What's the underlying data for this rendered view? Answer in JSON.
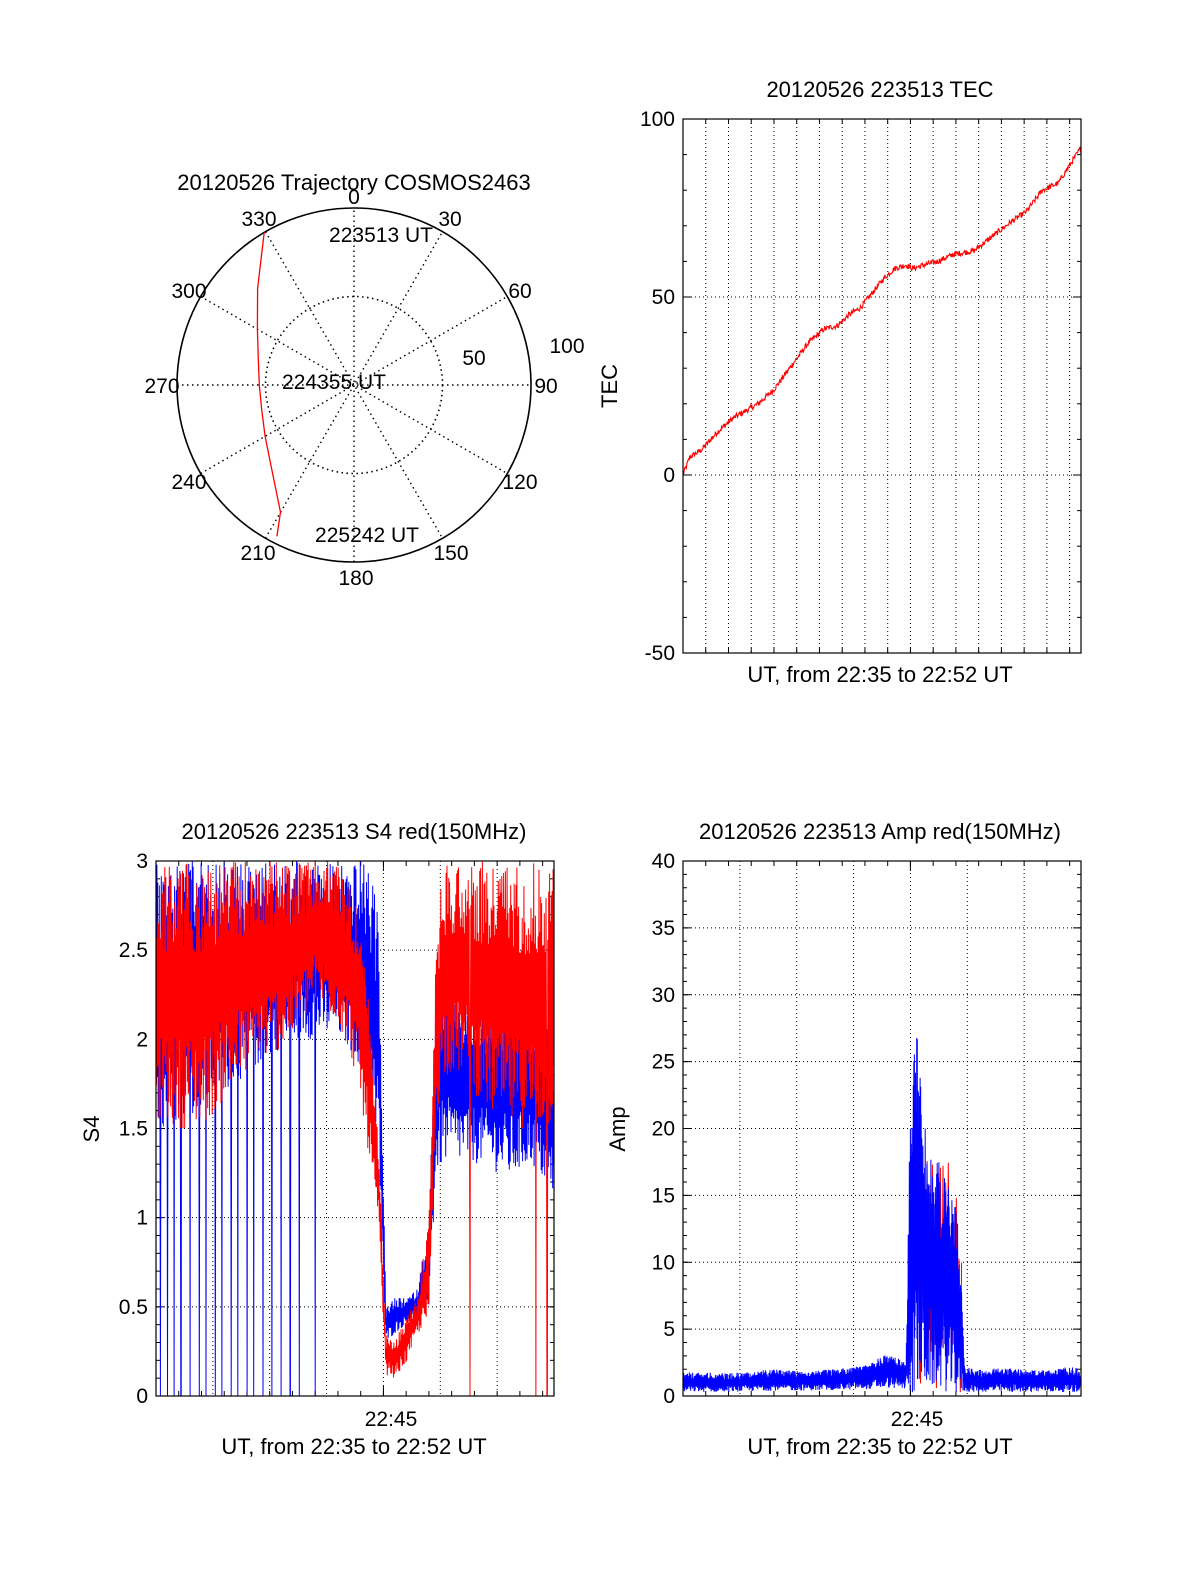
{
  "figure": {
    "palette": {
      "red": "#ff0000",
      "blue": "#0000ff",
      "axis": "#000000"
    }
  },
  "chart_data": [
    {
      "id": "polar",
      "type": "polar-trajectory",
      "title": "20120526 Trajectory COSMOS2463",
      "azimuth_labels": [
        "0",
        "30",
        "60",
        "90",
        "120",
        "150",
        "180",
        "210",
        "240",
        "270",
        "300",
        "330"
      ],
      "radial_labels": [
        "50",
        "100"
      ],
      "rmax": 100,
      "grid": true,
      "series": [
        {
          "color": "#ff0000",
          "points_az_zenith": [
            [
              -30.5,
              100
            ],
            [
              -45,
              77
            ],
            [
              -60,
              63
            ],
            [
              -75,
              56
            ],
            [
              -90,
              53.5
            ],
            [
              -105,
              54
            ],
            [
              -120,
              58
            ],
            [
              -135,
              66
            ],
            [
              -150,
              83
            ],
            [
              -153,
              96
            ]
          ]
        }
      ],
      "annotations": [
        {
          "text": "223513 UT",
          "az": 13,
          "zenith": 95
        },
        {
          "text": "224355 UT",
          "az": -90,
          "zenith": 8
        },
        {
          "text": "225242 UT",
          "az": 172,
          "zenith": 90
        }
      ]
    },
    {
      "id": "tec",
      "type": "line",
      "title": "20120526 223513 TEC",
      "xlabel": "UT, from 22:35 to 22:52 UT",
      "ylabel": "TEC",
      "xlim": [
        0,
        17.5
      ],
      "ylim": [
        -50,
        100
      ],
      "yticks": [
        "-50",
        "0",
        "50",
        "100"
      ],
      "x_minor_grid_step": 1,
      "grid": true,
      "series": [
        {
          "color": "#ff0000",
          "x_minutes": [
            0,
            0.3,
            0.8,
            1.5,
            2.2,
            3.3,
            4.0,
            4.8,
            5.5,
            6.2,
            6.8,
            7.3,
            7.8,
            8.3,
            8.8,
            9.3,
            9.8,
            10.1,
            10.6,
            11.2,
            11.9,
            12.8,
            13.6,
            14.4,
            15.1,
            15.8,
            16.5,
            17.0,
            17.5
          ],
          "values": [
            0,
            5,
            7,
            12,
            16,
            20,
            24,
            31,
            37,
            41,
            42,
            45,
            47,
            51,
            55,
            58,
            59,
            58,
            59,
            60,
            62,
            63,
            67,
            71,
            74,
            80,
            82,
            87,
            92
          ]
        }
      ]
    },
    {
      "id": "s4",
      "type": "line",
      "title": "20120526 223513 S4 red(150MHz)",
      "xlabel": "UT, from 22:35 to 22:52 UT",
      "ylabel": "S4",
      "xlim": [
        0,
        17.5
      ],
      "ylim": [
        0,
        3
      ],
      "yticks": [
        "0",
        "0.5",
        "1",
        "1.5",
        "2",
        "2.5",
        "3"
      ],
      "xtick": {
        "at_minutes": 10,
        "label": "22:45"
      },
      "grid": true,
      "series": [
        {
          "color": "#ff0000",
          "note": "red channel; envelope of scintillation trace",
          "x_minutes": [
            0,
            2,
            4,
            6,
            7,
            8,
            8.8,
            9.3,
            9.8,
            10.1,
            10.5,
            11.0,
            11.5,
            12.0,
            12.3,
            12.6,
            13.5,
            14.5,
            15.5,
            16.5,
            17.5
          ],
          "upper": [
            3,
            3,
            3,
            3,
            3,
            3,
            2.8,
            2.3,
            1.4,
            0.35,
            0.3,
            0.45,
            0.55,
            1.0,
            2.5,
            3,
            3,
            3,
            3,
            3,
            3
          ],
          "lower": [
            1.5,
            1.5,
            1.8,
            2.0,
            2.2,
            2.1,
            1.8,
            1.4,
            0.9,
            0.12,
            0.1,
            0.18,
            0.35,
            0.4,
            1.5,
            1.8,
            1.8,
            1.6,
            1.5,
            1.5,
            1.5
          ],
          "dropouts_minutes": [
            13.8,
            16.7,
            17.2
          ]
        },
        {
          "color": "#0000ff",
          "note": "blue channel; envelope of scintillation trace",
          "x_minutes": [
            0,
            2,
            4,
            6,
            7,
            8,
            8.8,
            9.3,
            9.8,
            10.1,
            10.5,
            11.0,
            11.5,
            12.0,
            12.3,
            12.6,
            13.5,
            14.5,
            15.5,
            16.5,
            17.5
          ],
          "upper": [
            3,
            3,
            3,
            3,
            3,
            3,
            3,
            3,
            2.7,
            0.5,
            0.55,
            0.55,
            0.6,
            1.0,
            2.2,
            2.4,
            2.3,
            2.2,
            2.3,
            2.2,
            2.0
          ],
          "lower": [
            1.5,
            1.6,
            1.8,
            2.0,
            2.0,
            2.0,
            1.9,
            1.7,
            1.3,
            0.3,
            0.35,
            0.4,
            0.45,
            0.5,
            1.2,
            1.3,
            1.3,
            1.3,
            1.2,
            1.3,
            1.1
          ],
          "dropouts_minutes": [
            0.2,
            0.5,
            0.8,
            1.1,
            1.5,
            1.9,
            2.2,
            2.6,
            2.9,
            3.3,
            3.6,
            4.0,
            4.3,
            4.7,
            5.1,
            5.5,
            5.9,
            6.3,
            7.0
          ]
        }
      ]
    },
    {
      "id": "amp",
      "type": "line",
      "title": "20120526 223513 Amp red(150MHz)",
      "xlabel": "UT, from 22:35 to 22:52 UT",
      "ylabel": "Amp",
      "xlim": [
        0,
        17.5
      ],
      "ylim": [
        0,
        40
      ],
      "yticks": [
        "0",
        "5",
        "10",
        "15",
        "20",
        "25",
        "30",
        "35",
        "40"
      ],
      "xtick": {
        "at_minutes": 10,
        "label": "22:45"
      },
      "grid": true,
      "series": [
        {
          "color": "#ff0000",
          "x_minutes": [
            10.0,
            10.3,
            10.6,
            11.0,
            11.4,
            11.8,
            12.1,
            12.3
          ],
          "upper": [
            18,
            26,
            22,
            18,
            20,
            17,
            16,
            10
          ],
          "lower": [
            0,
            0,
            0.2,
            0.5,
            0.2,
            0,
            0,
            0
          ]
        },
        {
          "color": "#0000ff",
          "x_minutes": [
            0,
            2,
            4,
            6,
            8,
            9.0,
            9.8,
            10.0,
            10.3,
            10.6,
            11.0,
            11.4,
            11.8,
            12.1,
            12.4,
            13,
            14,
            15,
            16,
            17,
            17.5
          ],
          "upper": [
            1.8,
            1.7,
            2.0,
            1.9,
            2.3,
            3.2,
            2.5,
            24,
            28,
            22,
            17,
            18,
            15,
            14,
            2.2,
            2.0,
            2.1,
            2.0,
            1.9,
            2.2,
            2.0
          ],
          "lower": [
            0.3,
            0.3,
            0.4,
            0.4,
            0.5,
            0.6,
            0.5,
            0,
            0,
            0.3,
            0.6,
            0.4,
            0.2,
            0,
            0.3,
            0.3,
            0.3,
            0.3,
            0.3,
            0.3,
            0.3
          ]
        }
      ]
    }
  ]
}
